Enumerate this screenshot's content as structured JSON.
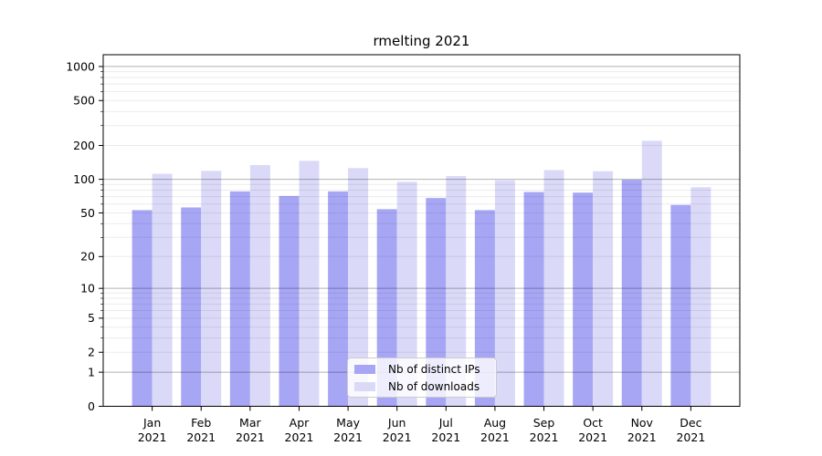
{
  "title": "rmelting 2021",
  "colors": {
    "background": "#ffffff",
    "axis": "#000000",
    "series_fills": [
      "#a6a6f5",
      "#dadaf8"
    ],
    "major_gridline": "rgba(0,0,0,0.30)",
    "minor_gridline": "rgba(0,0,0,0.08)"
  },
  "chart_data": {
    "type": "bar",
    "title": "rmelting 2021",
    "categories": [
      "Jan 2021",
      "Feb 2021",
      "Mar 2021",
      "Apr 2021",
      "May 2021",
      "Jun 2021",
      "Jul 2021",
      "Aug 2021",
      "Sep 2021",
      "Oct 2021",
      "Nov 2021",
      "Dec 2021"
    ],
    "series": [
      {
        "name": "Nb of distinct IPs",
        "values": [
          53,
          56,
          78,
          71,
          78,
          54,
          68,
          53,
          77,
          76,
          99,
          59
        ]
      },
      {
        "name": "Nb of downloads",
        "values": [
          112,
          119,
          134,
          146,
          126,
          95,
          107,
          98,
          121,
          118,
          220,
          85
        ]
      }
    ],
    "y_scale": "log1p",
    "y_ticks": [
      0,
      1,
      2,
      5,
      10,
      20,
      50,
      100,
      200,
      500,
      1000
    ],
    "y_major_gridlines": [
      1,
      10,
      100,
      1000
    ],
    "y_minor_gridlines": [
      2,
      3,
      4,
      5,
      6,
      7,
      8,
      9,
      20,
      30,
      40,
      50,
      60,
      70,
      80,
      90,
      200,
      300,
      400,
      500,
      600,
      700,
      800,
      900
    ],
    "ylim": [
      0,
      1271
    ],
    "grid": true,
    "xlabel": "",
    "ylabel": "",
    "legend_position": "lower center"
  }
}
